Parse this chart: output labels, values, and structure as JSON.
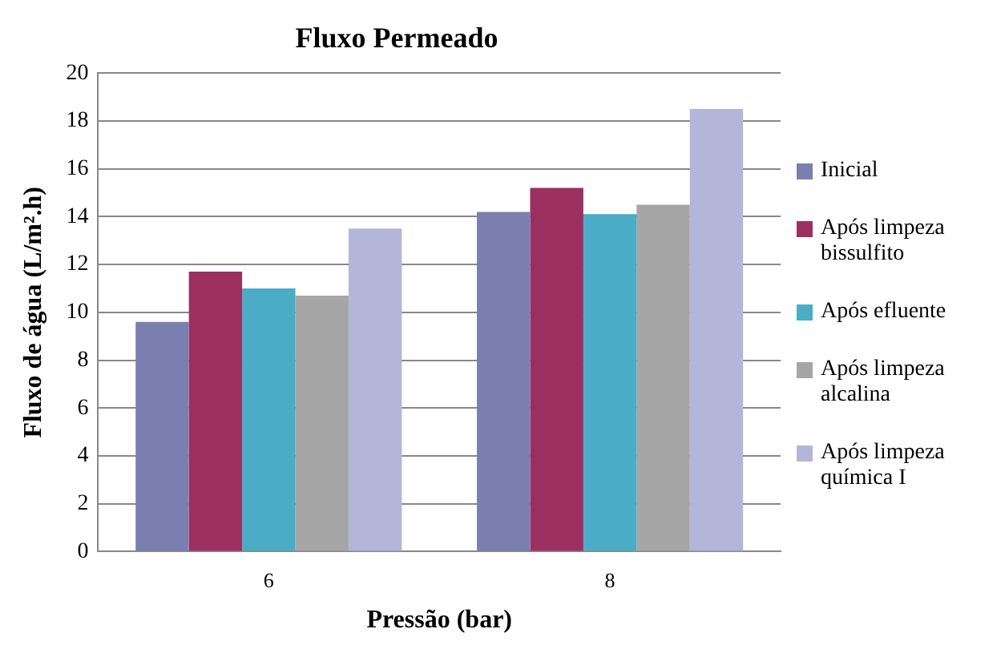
{
  "chart_data": {
    "type": "bar",
    "title": "Fluxo Permeado",
    "xlabel": "Pressão (bar)",
    "ylabel": "Fluxo de água (L/m².h)",
    "categories": [
      "6",
      "8"
    ],
    "series": [
      {
        "name": "Inicial",
        "color": "#7a7fb0",
        "values": [
          9.6,
          14.2
        ]
      },
      {
        "name": "Após limpeza bissulfito",
        "color": "#9b3060",
        "values": [
          11.7,
          15.2
        ]
      },
      {
        "name": "Após efluente",
        "color": "#4bacc6",
        "values": [
          11.0,
          14.1
        ]
      },
      {
        "name": "Após limpeza alcalina",
        "color": "#a6a6a6",
        "values": [
          10.7,
          14.5
        ]
      },
      {
        "name": "Após limpeza química I",
        "color": "#b3b6d9",
        "values": [
          13.5,
          18.5
        ]
      }
    ],
    "ylim": [
      0,
      20
    ],
    "yticks": [
      0,
      2,
      4,
      6,
      8,
      10,
      12,
      14,
      16,
      18,
      20
    ],
    "grid": "y",
    "legend": "right"
  }
}
